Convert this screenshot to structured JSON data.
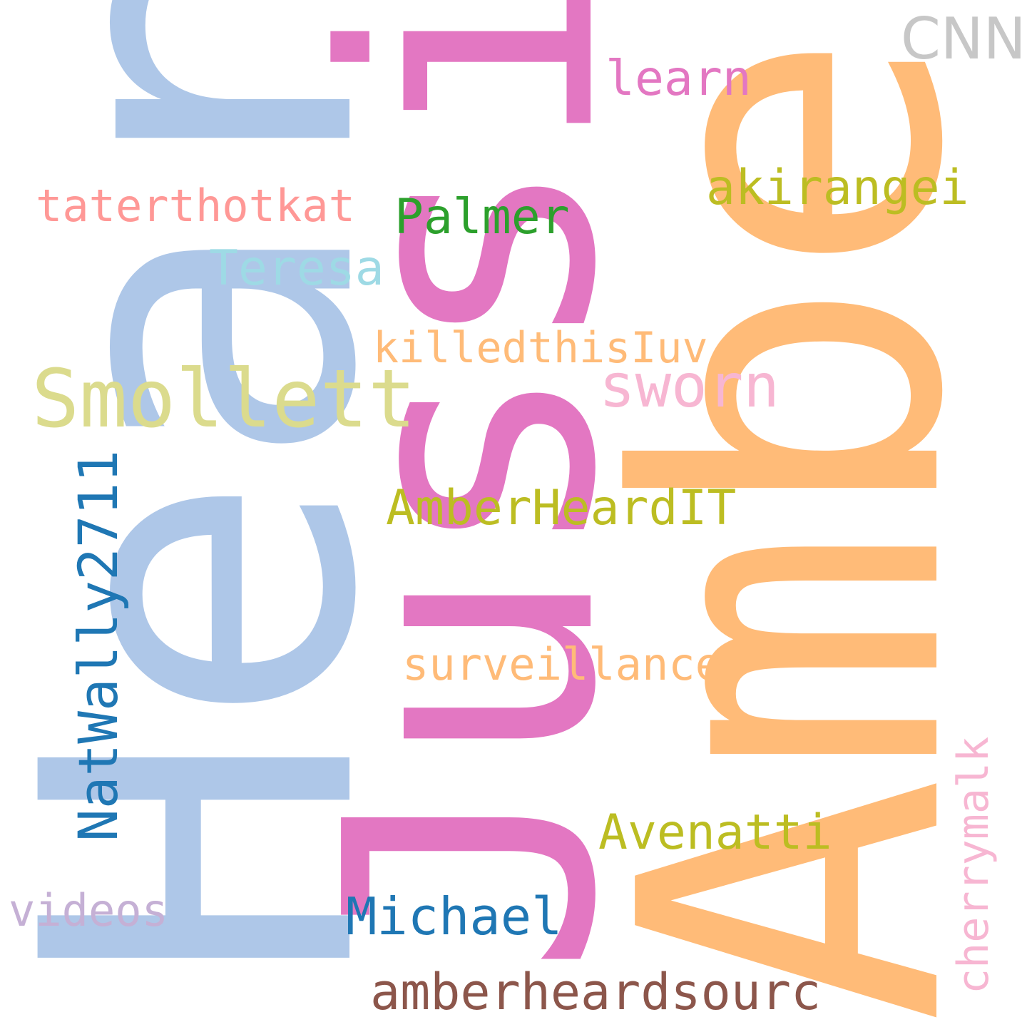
{
  "background": "#ffffff",
  "words": [
    {
      "text": "Heard",
      "color": "#aec7e8",
      "orientation": "vertical"
    },
    {
      "text": "Jussie",
      "color": "#e377c2",
      "orientation": "vertical"
    },
    {
      "text": "Amber",
      "color": "#ffbb78",
      "orientation": "vertical"
    },
    {
      "text": "CNN",
      "color": "#c7c7c7",
      "orientation": "horizontal"
    },
    {
      "text": "learn",
      "color": "#e377c2",
      "orientation": "horizontal"
    },
    {
      "text": "akirangei",
      "color": "#bcbd22",
      "orientation": "horizontal"
    },
    {
      "text": "taterthotkat",
      "color": "#ff9896",
      "orientation": "horizontal"
    },
    {
      "text": "Palmer",
      "color": "#2ca02c",
      "orientation": "horizontal"
    },
    {
      "text": "Teresa",
      "color": "#9edae5",
      "orientation": "horizontal"
    },
    {
      "text": "killedthisIuv",
      "color": "#ffbb78",
      "orientation": "horizontal"
    },
    {
      "text": "Smollett",
      "color": "#dbdb8d",
      "orientation": "horizontal"
    },
    {
      "text": "sworn",
      "color": "#f7b6d2",
      "orientation": "horizontal"
    },
    {
      "text": "AmberHeardIT",
      "color": "#bcbd22",
      "orientation": "horizontal"
    },
    {
      "text": "NatWally2711",
      "color": "#1f77b4",
      "orientation": "vertical"
    },
    {
      "text": "surveillance",
      "color": "#ffbb78",
      "orientation": "horizontal"
    },
    {
      "text": "cherrymalk",
      "color": "#f7b6d2",
      "orientation": "vertical"
    },
    {
      "text": "Avenatti",
      "color": "#bcbd22",
      "orientation": "horizontal"
    },
    {
      "text": "videos",
      "color": "#c5b0d5",
      "orientation": "horizontal"
    },
    {
      "text": "Michael",
      "color": "#1f77b4",
      "orientation": "horizontal"
    },
    {
      "text": "amberheardsourc",
      "color": "#8c564b",
      "orientation": "horizontal"
    }
  ]
}
